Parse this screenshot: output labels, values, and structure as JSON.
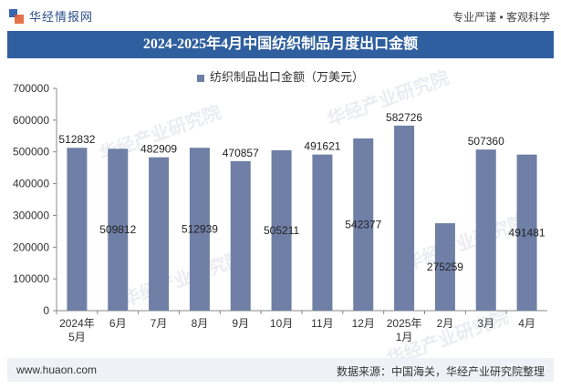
{
  "header": {
    "logo_text": "华经情报网",
    "right_text": "专业严谨 • 客观科学"
  },
  "watermark_text": "华经产业研究院",
  "footer": {
    "left": "www.huaon.com",
    "right": "数据来源：中国海关，华经产业研究院整理"
  },
  "colors": {
    "bar": "#6f7fa6",
    "title_bg": "#2f5f9e",
    "footer_bg": "#eef1f6"
  },
  "chart_data": {
    "type": "bar",
    "title": "2024-2025年4月中国纺织制品月度出口金额",
    "categories": [
      [
        "2024年",
        "5月"
      ],
      [
        "6月"
      ],
      [
        "7月"
      ],
      [
        "8月"
      ],
      [
        "9月"
      ],
      [
        "10月"
      ],
      [
        "11月"
      ],
      [
        "12月"
      ],
      [
        "2025年",
        "1月"
      ],
      [
        "2月"
      ],
      [
        "3月"
      ],
      [
        "4月"
      ]
    ],
    "series": [
      {
        "name": "纺织制品出口金额（万美元）",
        "values": [
          512832,
          509812,
          482909,
          512939,
          470857,
          505211,
          491621,
          542377,
          582726,
          275259,
          507360,
          491481
        ]
      }
    ],
    "ylim": [
      0,
      700000
    ],
    "yticks": [
      0,
      100000,
      200000,
      300000,
      400000,
      500000,
      600000,
      700000
    ],
    "label_pos": [
      "top",
      "mid",
      "top",
      "mid",
      "top",
      "mid",
      "top",
      "mid",
      "top",
      "mid",
      "top",
      "mid"
    ],
    "grid": false,
    "legend": "top-center"
  }
}
